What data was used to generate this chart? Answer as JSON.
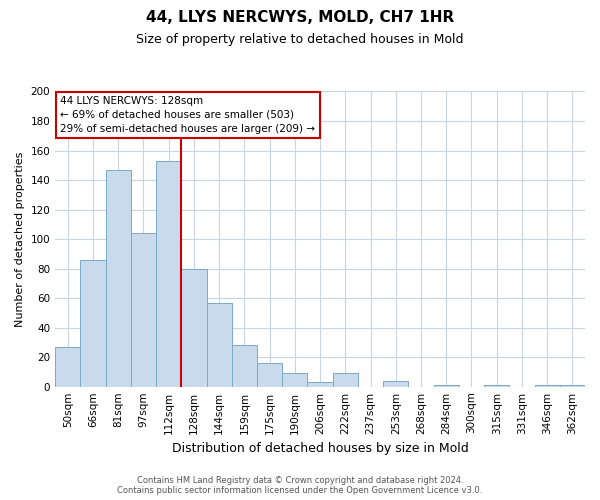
{
  "title": "44, LLYS NERCWYS, MOLD, CH7 1HR",
  "subtitle": "Size of property relative to detached houses in Mold",
  "xlabel": "Distribution of detached houses by size in Mold",
  "ylabel": "Number of detached properties",
  "bar_labels": [
    "50sqm",
    "66sqm",
    "81sqm",
    "97sqm",
    "112sqm",
    "128sqm",
    "144sqm",
    "159sqm",
    "175sqm",
    "190sqm",
    "206sqm",
    "222sqm",
    "237sqm",
    "253sqm",
    "268sqm",
    "284sqm",
    "300sqm",
    "315sqm",
    "331sqm",
    "346sqm",
    "362sqm"
  ],
  "bar_values": [
    27,
    86,
    147,
    104,
    153,
    80,
    57,
    28,
    16,
    9,
    3,
    9,
    0,
    4,
    0,
    1,
    0,
    1,
    0,
    1,
    1
  ],
  "bar_color": "#c8daec",
  "bar_edge_color": "#7aaac8",
  "vline_color": "#cc0000",
  "ylim": [
    0,
    200
  ],
  "yticks": [
    0,
    20,
    40,
    60,
    80,
    100,
    120,
    140,
    160,
    180,
    200
  ],
  "annotation_title": "44 LLYS NERCWYS: 128sqm",
  "annotation_line1": "← 69% of detached houses are smaller (503)",
  "annotation_line2": "29% of semi-detached houses are larger (209) →",
  "annotation_box_color": "white",
  "annotation_box_edge": "#cc0000",
  "footer_line1": "Contains HM Land Registry data © Crown copyright and database right 2024.",
  "footer_line2": "Contains public sector information licensed under the Open Government Licence v3.0.",
  "bg_color": "white",
  "grid_color": "#c8d4e0",
  "title_fontsize": 11,
  "subtitle_fontsize": 9,
  "ylabel_fontsize": 8,
  "xlabel_fontsize": 9,
  "tick_fontsize": 7.5,
  "footer_fontsize": 6,
  "annot_fontsize": 7.5
}
